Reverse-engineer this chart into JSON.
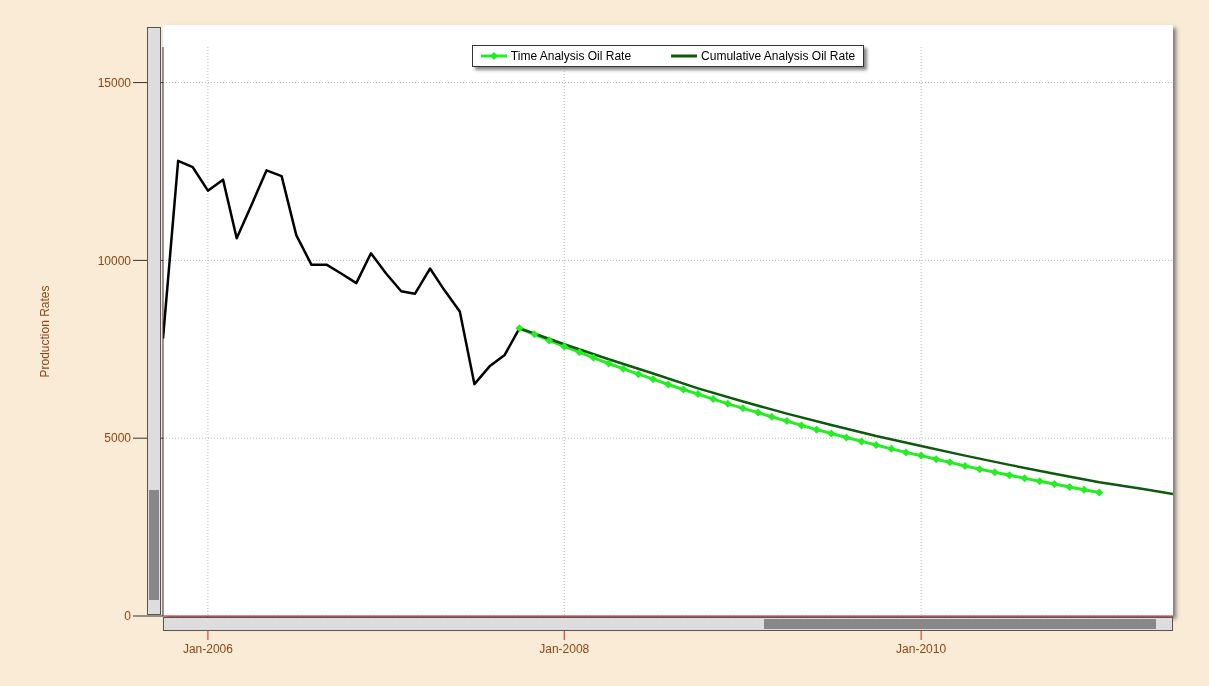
{
  "chart_data": {
    "type": "line",
    "ylabel": "Production Rates",
    "xlim": [
      "2005-10-01",
      "2011-06"
    ],
    "xticks": [
      {
        "value": "2006-01",
        "label": "Jan-2006"
      },
      {
        "value": "2008-01",
        "label": "Jan-2008"
      },
      {
        "value": "2010-01",
        "label": "Jan-2010"
      }
    ],
    "ylim": [
      0,
      16000
    ],
    "yticks": [
      0,
      5000,
      10000,
      15000
    ],
    "grid": true,
    "legend": "top",
    "series": [
      {
        "color": "#000000",
        "marker": "none",
        "x": [
          "2005-10",
          "2005-11",
          "2005-12",
          "2006-01",
          "2006-02",
          "2006-03",
          "2006-04",
          "2006-05",
          "2006-06",
          "2006-07",
          "2006-08",
          "2006-09",
          "2006-10",
          "2006-11",
          "2006-12",
          "2007-01",
          "2007-02",
          "2007-03",
          "2007-04",
          "2007-05",
          "2007-06",
          "2007-07",
          "2007-08",
          "2007-09",
          "2007-10"
        ],
        "values": [
          7800,
          12800,
          12620,
          11960,
          12270,
          10620,
          11580,
          12530,
          12370,
          10710,
          9880,
          9880,
          9630,
          9360,
          10200,
          9630,
          9130,
          9060,
          9770,
          9150,
          8560,
          6520,
          7020,
          7340,
          8090
        ]
      },
      {
        "name": "Time Analysis Oil Rate",
        "color": "#22ee22",
        "marker": "diamond",
        "x": [
          "2007-10",
          "2007-11",
          "2007-12",
          "2008-01",
          "2008-02",
          "2008-03",
          "2008-04",
          "2008-05",
          "2008-06",
          "2008-07",
          "2008-08",
          "2008-09",
          "2008-10",
          "2008-11",
          "2008-12",
          "2009-01",
          "2009-02",
          "2009-03",
          "2009-04",
          "2009-05",
          "2009-06",
          "2009-07",
          "2009-08",
          "2009-09",
          "2009-10",
          "2009-11",
          "2009-12",
          "2010-01",
          "2010-02",
          "2010-03",
          "2010-04",
          "2010-05",
          "2010-06",
          "2010-07",
          "2010-08",
          "2010-09",
          "2010-10",
          "2010-11",
          "2010-12",
          "2011-01"
        ],
        "values": [
          8090,
          7920,
          7750,
          7580,
          7420,
          7260,
          7100,
          6950,
          6800,
          6660,
          6510,
          6370,
          6240,
          6100,
          5970,
          5840,
          5720,
          5600,
          5480,
          5360,
          5240,
          5130,
          5020,
          4910,
          4810,
          4700,
          4600,
          4510,
          4410,
          4320,
          4220,
          4130,
          4040,
          3960,
          3870,
          3790,
          3710,
          3630,
          3550,
          3470
        ]
      },
      {
        "name": "Cumulative Analysis Oil Rate",
        "color": "#0d5a0d",
        "marker": "none",
        "x": [
          "2007-10",
          "2008-01",
          "2008-04",
          "2008-07",
          "2008-10",
          "2009-01",
          "2009-04",
          "2009-07",
          "2009-10",
          "2010-01",
          "2010-04",
          "2010-07",
          "2010-10",
          "2011-01",
          "2011-04",
          "2011-06"
        ],
        "values": [
          8090,
          7640,
          7220,
          6820,
          6400,
          6030,
          5690,
          5370,
          5060,
          4780,
          4510,
          4250,
          4000,
          3760,
          3570,
          3430
        ]
      }
    ]
  }
}
